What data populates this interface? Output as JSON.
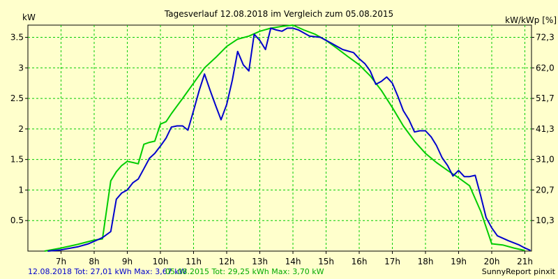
{
  "chart_data": {
    "type": "line",
    "title": "Tagesverlauf 12.08.2018 im Vergleich zum 05.08.2015",
    "ylabel_left": "kW",
    "ylabel_right": "kW/kWp [%]",
    "xlim": [
      6.0,
      21.2
    ],
    "ylim": [
      0,
      3.7
    ],
    "x_ticks": [
      {
        "v": 7,
        "label": "7h"
      },
      {
        "v": 8,
        "label": "8h"
      },
      {
        "v": 9,
        "label": "9h"
      },
      {
        "v": 10,
        "label": "10h"
      },
      {
        "v": 11,
        "label": "11h"
      },
      {
        "v": 12,
        "label": "12h"
      },
      {
        "v": 13,
        "label": "13h"
      },
      {
        "v": 14,
        "label": "14h"
      },
      {
        "v": 15,
        "label": "15h"
      },
      {
        "v": 16,
        "label": "16h"
      },
      {
        "v": 17,
        "label": "17h"
      },
      {
        "v": 18,
        "label": "18h"
      },
      {
        "v": 19,
        "label": "19h"
      },
      {
        "v": 20,
        "label": "20h"
      },
      {
        "v": 21,
        "label": "21h"
      }
    ],
    "y_ticks": [
      {
        "v": 0.5,
        "label": "0.5"
      },
      {
        "v": 1,
        "label": "1"
      },
      {
        "v": 1.5,
        "label": "1.5"
      },
      {
        "v": 2,
        "label": "2"
      },
      {
        "v": 2.5,
        "label": "2.5"
      },
      {
        "v": 3,
        "label": "3"
      },
      {
        "v": 3.5,
        "label": "3.5"
      }
    ],
    "y2_ticks": [
      {
        "v": 0.5,
        "label": "10,3"
      },
      {
        "v": 1,
        "label": "20,7"
      },
      {
        "v": 1.5,
        "label": "31,0"
      },
      {
        "v": 2,
        "label": "41,3"
      },
      {
        "v": 2.5,
        "label": "51,7"
      },
      {
        "v": 3,
        "label": "62,0"
      },
      {
        "v": 3.5,
        "label": "72,3"
      }
    ],
    "grid": true,
    "legend": [
      {
        "text": "12.08.2018 Tot: 27,01 kWh Max: 3,67 kW",
        "color": "#0000cc"
      },
      {
        "text": "05.08.2015 Tot: 29,25 kWh Max: 3,70 kW",
        "color": "#00cc00"
      }
    ],
    "footer_right": "SunnyReport pinxit",
    "series": [
      {
        "color": "#0000cc",
        "points": [
          [
            6.6,
            0.0
          ],
          [
            7.0,
            0.02
          ],
          [
            7.5,
            0.07
          ],
          [
            7.83,
            0.12
          ],
          [
            8.0,
            0.16
          ],
          [
            8.25,
            0.22
          ],
          [
            8.5,
            0.32
          ],
          [
            8.67,
            0.85
          ],
          [
            8.83,
            0.95
          ],
          [
            9.0,
            1.0
          ],
          [
            9.17,
            1.12
          ],
          [
            9.33,
            1.18
          ],
          [
            9.5,
            1.35
          ],
          [
            9.67,
            1.52
          ],
          [
            9.83,
            1.6
          ],
          [
            10.0,
            1.72
          ],
          [
            10.17,
            1.85
          ],
          [
            10.33,
            2.03
          ],
          [
            10.5,
            2.05
          ],
          [
            10.67,
            2.05
          ],
          [
            10.83,
            1.98
          ],
          [
            11.0,
            2.3
          ],
          [
            11.17,
            2.63
          ],
          [
            11.33,
            2.9
          ],
          [
            11.5,
            2.63
          ],
          [
            11.67,
            2.38
          ],
          [
            11.83,
            2.15
          ],
          [
            12.0,
            2.4
          ],
          [
            12.17,
            2.8
          ],
          [
            12.33,
            3.27
          ],
          [
            12.5,
            3.05
          ],
          [
            12.67,
            2.95
          ],
          [
            12.83,
            3.55
          ],
          [
            13.0,
            3.45
          ],
          [
            13.17,
            3.3
          ],
          [
            13.33,
            3.65
          ],
          [
            13.5,
            3.62
          ],
          [
            13.67,
            3.6
          ],
          [
            13.83,
            3.65
          ],
          [
            14.0,
            3.65
          ],
          [
            14.17,
            3.62
          ],
          [
            14.5,
            3.52
          ],
          [
            14.83,
            3.5
          ],
          [
            15.17,
            3.4
          ],
          [
            15.5,
            3.3
          ],
          [
            15.83,
            3.25
          ],
          [
            16.0,
            3.15
          ],
          [
            16.17,
            3.07
          ],
          [
            16.33,
            2.95
          ],
          [
            16.5,
            2.73
          ],
          [
            16.67,
            2.78
          ],
          [
            16.83,
            2.85
          ],
          [
            17.0,
            2.75
          ],
          [
            17.17,
            2.53
          ],
          [
            17.33,
            2.3
          ],
          [
            17.5,
            2.15
          ],
          [
            17.67,
            1.95
          ],
          [
            17.83,
            1.97
          ],
          [
            18.0,
            1.97
          ],
          [
            18.17,
            1.87
          ],
          [
            18.33,
            1.73
          ],
          [
            18.5,
            1.53
          ],
          [
            18.67,
            1.4
          ],
          [
            18.83,
            1.23
          ],
          [
            19.0,
            1.32
          ],
          [
            19.17,
            1.22
          ],
          [
            19.33,
            1.22
          ],
          [
            19.5,
            1.24
          ],
          [
            19.67,
            0.9
          ],
          [
            19.83,
            0.55
          ],
          [
            20.0,
            0.38
          ],
          [
            20.17,
            0.25
          ],
          [
            20.5,
            0.17
          ],
          [
            20.83,
            0.1
          ],
          [
            21.0,
            0.05
          ],
          [
            21.17,
            0.01
          ]
        ]
      },
      {
        "color": "#00cc00",
        "points": [
          [
            6.5,
            0.0
          ],
          [
            7.0,
            0.05
          ],
          [
            7.5,
            0.11
          ],
          [
            8.0,
            0.18
          ],
          [
            8.25,
            0.2
          ],
          [
            8.5,
            1.15
          ],
          [
            8.67,
            1.3
          ],
          [
            8.83,
            1.4
          ],
          [
            9.0,
            1.47
          ],
          [
            9.17,
            1.45
          ],
          [
            9.33,
            1.43
          ],
          [
            9.5,
            1.75
          ],
          [
            9.67,
            1.78
          ],
          [
            9.83,
            1.8
          ],
          [
            10.0,
            2.08
          ],
          [
            10.17,
            2.12
          ],
          [
            10.33,
            2.25
          ],
          [
            10.67,
            2.5
          ],
          [
            11.0,
            2.75
          ],
          [
            11.33,
            3.0
          ],
          [
            11.67,
            3.17
          ],
          [
            12.0,
            3.35
          ],
          [
            12.33,
            3.47
          ],
          [
            12.67,
            3.52
          ],
          [
            13.0,
            3.6
          ],
          [
            13.33,
            3.65
          ],
          [
            13.67,
            3.68
          ],
          [
            14.0,
            3.7
          ],
          [
            14.33,
            3.62
          ],
          [
            14.67,
            3.55
          ],
          [
            15.0,
            3.45
          ],
          [
            15.33,
            3.32
          ],
          [
            15.67,
            3.18
          ],
          [
            16.0,
            3.05
          ],
          [
            16.33,
            2.87
          ],
          [
            16.67,
            2.63
          ],
          [
            17.0,
            2.35
          ],
          [
            17.33,
            2.05
          ],
          [
            17.67,
            1.8
          ],
          [
            18.0,
            1.6
          ],
          [
            18.33,
            1.45
          ],
          [
            18.67,
            1.32
          ],
          [
            19.0,
            1.2
          ],
          [
            19.33,
            1.07
          ],
          [
            19.67,
            0.65
          ],
          [
            20.0,
            0.12
          ],
          [
            20.33,
            0.1
          ],
          [
            20.67,
            0.05
          ],
          [
            21.0,
            0.01
          ]
        ]
      }
    ]
  }
}
